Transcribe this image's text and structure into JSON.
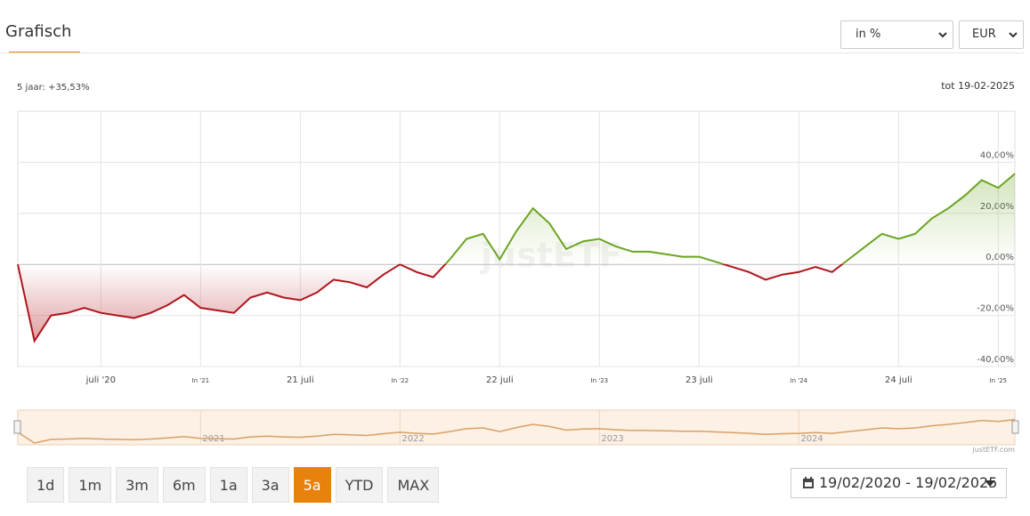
{
  "header": {
    "tab": "Grafisch",
    "unit_select": "in %",
    "currency_select": "EUR",
    "period_return": "5 jaar: +35,53%",
    "as_of": "tot 19-02-2025"
  },
  "chart_data": {
    "type": "line",
    "watermark": "justETF",
    "x": [
      "2020-02",
      "2020-03",
      "2020-04",
      "2020-05",
      "2020-06",
      "2020-07",
      "2020-08",
      "2020-09",
      "2020-10",
      "2020-11",
      "2020-12",
      "2021-01",
      "2021-02",
      "2021-03",
      "2021-04",
      "2021-05",
      "2021-06",
      "2021-07",
      "2021-08",
      "2021-09",
      "2021-10",
      "2021-11",
      "2021-12",
      "2022-01",
      "2022-02",
      "2022-03",
      "2022-04",
      "2022-05",
      "2022-06",
      "2022-07",
      "2022-08",
      "2022-09",
      "2022-10",
      "2022-11",
      "2022-12",
      "2023-01",
      "2023-02",
      "2023-03",
      "2023-04",
      "2023-05",
      "2023-06",
      "2023-07",
      "2023-08",
      "2023-09",
      "2023-10",
      "2023-11",
      "2023-12",
      "2024-01",
      "2024-02",
      "2024-03",
      "2024-04",
      "2024-05",
      "2024-06",
      "2024-07",
      "2024-08",
      "2024-09",
      "2024-10",
      "2024-11",
      "2024-12",
      "2025-01",
      "2025-02"
    ],
    "values": [
      0,
      -30,
      -20,
      -19,
      -17,
      -19,
      -20,
      -21,
      -19,
      -16,
      -12,
      -17,
      -18,
      -19,
      -13,
      -11,
      -13,
      -14,
      -11,
      -6,
      -7,
      -9,
      -4,
      0,
      -3,
      -5,
      2,
      10,
      12,
      2,
      13,
      22,
      16,
      6,
      9,
      10,
      7,
      5,
      5,
      4,
      3,
      3,
      1,
      -1,
      -3,
      -6,
      -4,
      -3,
      -1,
      -3,
      2,
      7,
      12,
      10,
      12,
      18,
      22,
      27,
      33,
      30,
      35.53
    ],
    "color_positive": "#6aa420",
    "color_negative": "#b0141c",
    "xlim": [
      "2020-02",
      "2025-02"
    ],
    "xticks": [
      {
        "value": "2020-07",
        "label": "juli '20"
      },
      {
        "value": "2021-01",
        "label": "In '21"
      },
      {
        "value": "2021-07",
        "label": "21 juli"
      },
      {
        "value": "2022-01",
        "label": "In '22"
      },
      {
        "value": "2022-07",
        "label": "22 juli"
      },
      {
        "value": "2023-01",
        "label": "In '23"
      },
      {
        "value": "2023-07",
        "label": "23 juli"
      },
      {
        "value": "2024-01",
        "label": "In '24"
      },
      {
        "value": "2024-07",
        "label": "24 juli"
      },
      {
        "value": "2025-01",
        "label": "In '25"
      }
    ],
    "ylim": [
      -40,
      60
    ],
    "yticks": [
      {
        "value": -40,
        "label": "-40,00%"
      },
      {
        "value": -20,
        "label": "-20,00%"
      },
      {
        "value": 0,
        "label": "0,00%"
      },
      {
        "value": 20,
        "label": "20,00%"
      },
      {
        "value": 40,
        "label": "40,00%"
      }
    ],
    "grid": true
  },
  "navigator": {
    "years": [
      {
        "value": "2021-01",
        "label": "2021"
      },
      {
        "value": "2022-01",
        "label": "2022"
      },
      {
        "value": "2023-01",
        "label": "2023"
      },
      {
        "value": "2024-01",
        "label": "2024"
      }
    ],
    "color": "#d9a066",
    "credit": "justETF.com"
  },
  "range_buttons": {
    "labels": [
      "1d",
      "1m",
      "3m",
      "6m",
      "1a",
      "3a",
      "5a",
      "YTD",
      "MAX"
    ],
    "active": 6
  },
  "date_range": "19/02/2020 - 19/02/2025"
}
